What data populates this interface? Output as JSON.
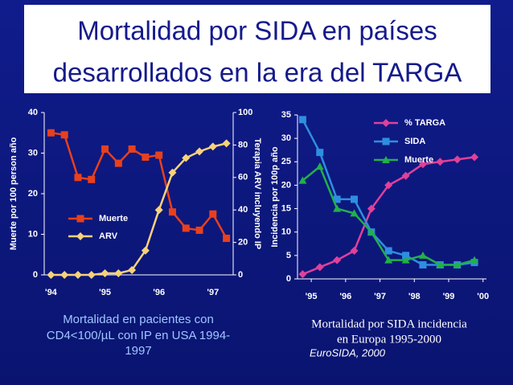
{
  "slide_title": [
    "Mortalidad por SIDA en países",
    "desarrollados en la era del TARGA"
  ],
  "captions": {
    "left": [
      "Mortalidad en pacientes con",
      "CD4<100/µL con IP en  USA  1994-",
      "1997"
    ],
    "right": [
      "Mortalidad por SIDA incidencia",
      "en Europa 1995-2000"
    ],
    "source": "EuroSIDA, 2000"
  },
  "chart_data": [
    {
      "type": "line",
      "ylabel": "Muerte por 100 person año",
      "y2label": "Terapia ARV incluyendo IP",
      "categories": [
        "'94",
        null,
        null,
        null,
        "'95",
        null,
        null,
        null,
        "'96",
        null,
        null,
        null,
        "'97",
        null
      ],
      "ylim": [
        0,
        40
      ],
      "yticks": [
        0,
        10,
        20,
        30,
        40
      ],
      "y2lim": [
        0,
        100
      ],
      "y2ticks": [
        0,
        20,
        40,
        60,
        80,
        100
      ],
      "legend": "lower-left",
      "series": [
        {
          "name": "Muerte",
          "color": "#e8401c",
          "marker": "square",
          "values": [
            35,
            34.5,
            24,
            23.5,
            31,
            27.5,
            31,
            29,
            29.5,
            15.5,
            11.5,
            11,
            15,
            9
          ]
        },
        {
          "name": "ARV",
          "color": "#f8d27a",
          "marker": "diamond",
          "axis": "y2",
          "values": [
            0,
            0,
            0,
            0,
            1,
            1,
            3,
            15,
            40,
            63,
            72,
            76,
            79,
            81
          ]
        }
      ]
    },
    {
      "type": "line",
      "ylabel": "Incidencia por 100p año",
      "x": [
        1994.75,
        1995.25,
        1995.75,
        1996.25,
        1996.75,
        1997.25,
        1997.75,
        1998.25,
        1998.75,
        1999.25,
        1999.75
      ],
      "xlim": [
        1994.6,
        2000.1
      ],
      "xticks": [
        {
          "value": 1995,
          "label": "'95"
        },
        {
          "value": 1996,
          "label": "'96"
        },
        {
          "value": 1997,
          "label": "'97"
        },
        {
          "value": 1998,
          "label": "'98"
        },
        {
          "value": 1999,
          "label": "'99"
        },
        {
          "value": 2000,
          "label": "'00"
        }
      ],
      "ylim": [
        0,
        35
      ],
      "yticks": [
        0,
        5,
        10,
        15,
        20,
        25,
        30,
        35
      ],
      "legend": "upper-right",
      "series": [
        {
          "name": "% TARGA",
          "color": "#e0409a",
          "marker": "diamond",
          "values": [
            1,
            2.5,
            4,
            6,
            15,
            20,
            22,
            24.5,
            25,
            25.5,
            26
          ]
        },
        {
          "name": "SIDA",
          "color": "#2e8ee0",
          "marker": "square",
          "values": [
            34,
            27,
            17,
            17,
            10,
            6,
            5,
            3,
            3,
            3,
            3.5
          ]
        },
        {
          "name": "Muerte",
          "color": "#22b04a",
          "marker": "triangle",
          "values": [
            21,
            24,
            15,
            14,
            10,
            4,
            4,
            5,
            3,
            3,
            4
          ]
        }
      ]
    }
  ]
}
